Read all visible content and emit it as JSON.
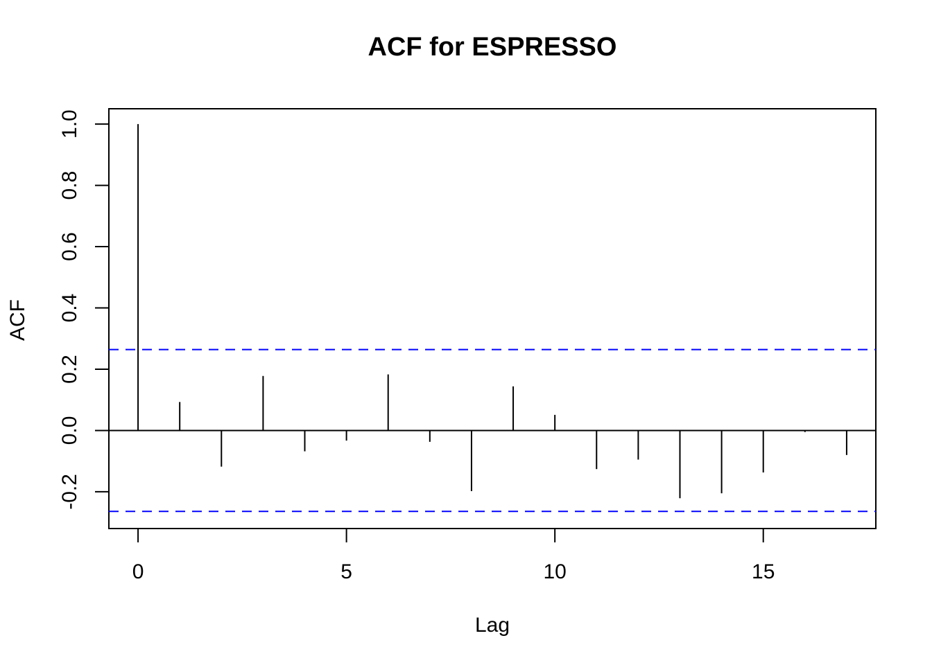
{
  "chart_data": {
    "type": "bar",
    "subtype": "acf-stem",
    "title": "ACF for ESPRESSO",
    "xlabel": "Lag",
    "ylabel": "ACF",
    "xlim": [
      -0.7,
      17.7
    ],
    "ylim": [
      -0.32,
      1.05
    ],
    "x_ticks": [
      0,
      5,
      10,
      15
    ],
    "x_tick_labels": [
      "0",
      "5",
      "10",
      "15"
    ],
    "y_ticks": [
      -0.2,
      0.0,
      0.2,
      0.4,
      0.6,
      0.8,
      1.0
    ],
    "y_tick_labels": [
      "-0.2",
      "0.0",
      "0.2",
      "0.4",
      "0.6",
      "0.8",
      "1.0"
    ],
    "lags": [
      0,
      1,
      2,
      3,
      4,
      5,
      6,
      7,
      8,
      9,
      10,
      11,
      12,
      13,
      14,
      15,
      16,
      17
    ],
    "values": [
      1.0,
      0.093,
      -0.118,
      0.178,
      -0.068,
      -0.033,
      0.183,
      -0.037,
      -0.198,
      0.144,
      0.051,
      -0.126,
      -0.095,
      -0.221,
      -0.205,
      -0.137,
      -0.005,
      -0.08
    ],
    "confidence_bound": 0.264,
    "zero_line": true,
    "grid": false,
    "colors": {
      "stems": "#000000",
      "confidence": "#0000ff",
      "axes": "#000000"
    }
  }
}
